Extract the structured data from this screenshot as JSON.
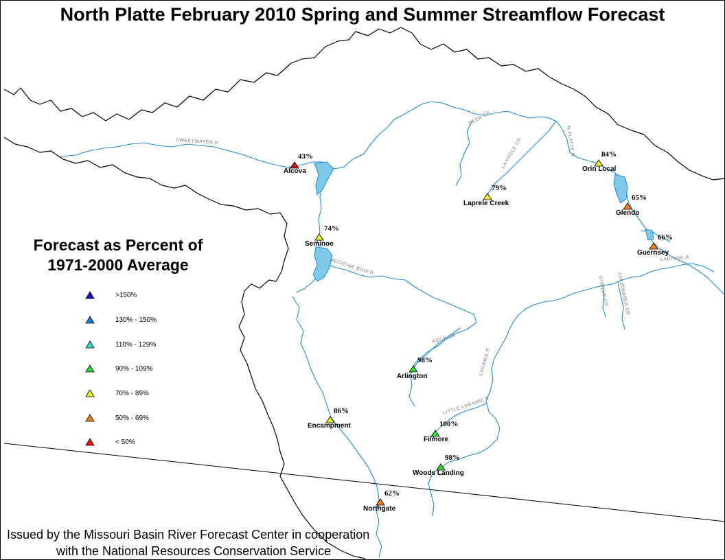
{
  "title": "North Platte February 2010 Spring and Summer Streamflow Forecast",
  "legend": {
    "title_line1": "Forecast as Percent of",
    "title_line2": "1971-2000 Average",
    "items": [
      {
        "label": ">150%",
        "color": "#1010c8"
      },
      {
        "label": "130% - 150%",
        "color": "#2878e8"
      },
      {
        "label": "110% - 129%",
        "color": "#30d8d0"
      },
      {
        "label": "90% - 109%",
        "color": "#30d838"
      },
      {
        "label": "70% - 89%",
        "color": "#f0f030"
      },
      {
        "label": "50% - 69%",
        "color": "#f08020"
      },
      {
        "label": "< 50%",
        "color": "#e01010"
      }
    ]
  },
  "stations": [
    {
      "name": "Alcova",
      "percent": "43%",
      "color": "#e01010"
    },
    {
      "name": "Seminoe",
      "percent": "74%",
      "color": "#f0f030"
    },
    {
      "name": "Laprele Creek",
      "percent": "79%",
      "color": "#f0f030"
    },
    {
      "name": "Orin Local",
      "percent": "84%",
      "color": "#f0f030"
    },
    {
      "name": "Glendo",
      "percent": "65%",
      "color": "#f08020"
    },
    {
      "name": "Guernsey",
      "percent": "66%",
      "color": "#f08020"
    },
    {
      "name": "Arlington",
      "percent": "98%",
      "color": "#30d838"
    },
    {
      "name": "Encampment",
      "percent": "86%",
      "color": "#f0f030"
    },
    {
      "name": "Filmore",
      "percent": "100%",
      "color": "#30d838"
    },
    {
      "name": "Woods Landing",
      "percent": "98%",
      "color": "#30d838"
    },
    {
      "name": "Northgate",
      "percent": "62%",
      "color": "#f08020"
    }
  ],
  "river_labels": [
    "SWEETWATER R",
    "DEER CR",
    "N PLATTE R",
    "LA PRELE CR",
    "MEDICINE BOW R",
    "ROCK CR",
    "LARAMIE R",
    "LARAMIE R",
    "LITTLE LARAMIE R",
    "SYBILLE CR",
    "CHUGWATER CR"
  ],
  "footer": {
    "line1": "Issued by the Missouri Basin River Forecast Center in cooperation",
    "line2": "with the National Resources Conservation Service"
  },
  "colors": {
    "river": "#1e8cd8",
    "lake": "#7ec8ea",
    "boundary": "#000000",
    "river_label": "#7a7a7a"
  }
}
